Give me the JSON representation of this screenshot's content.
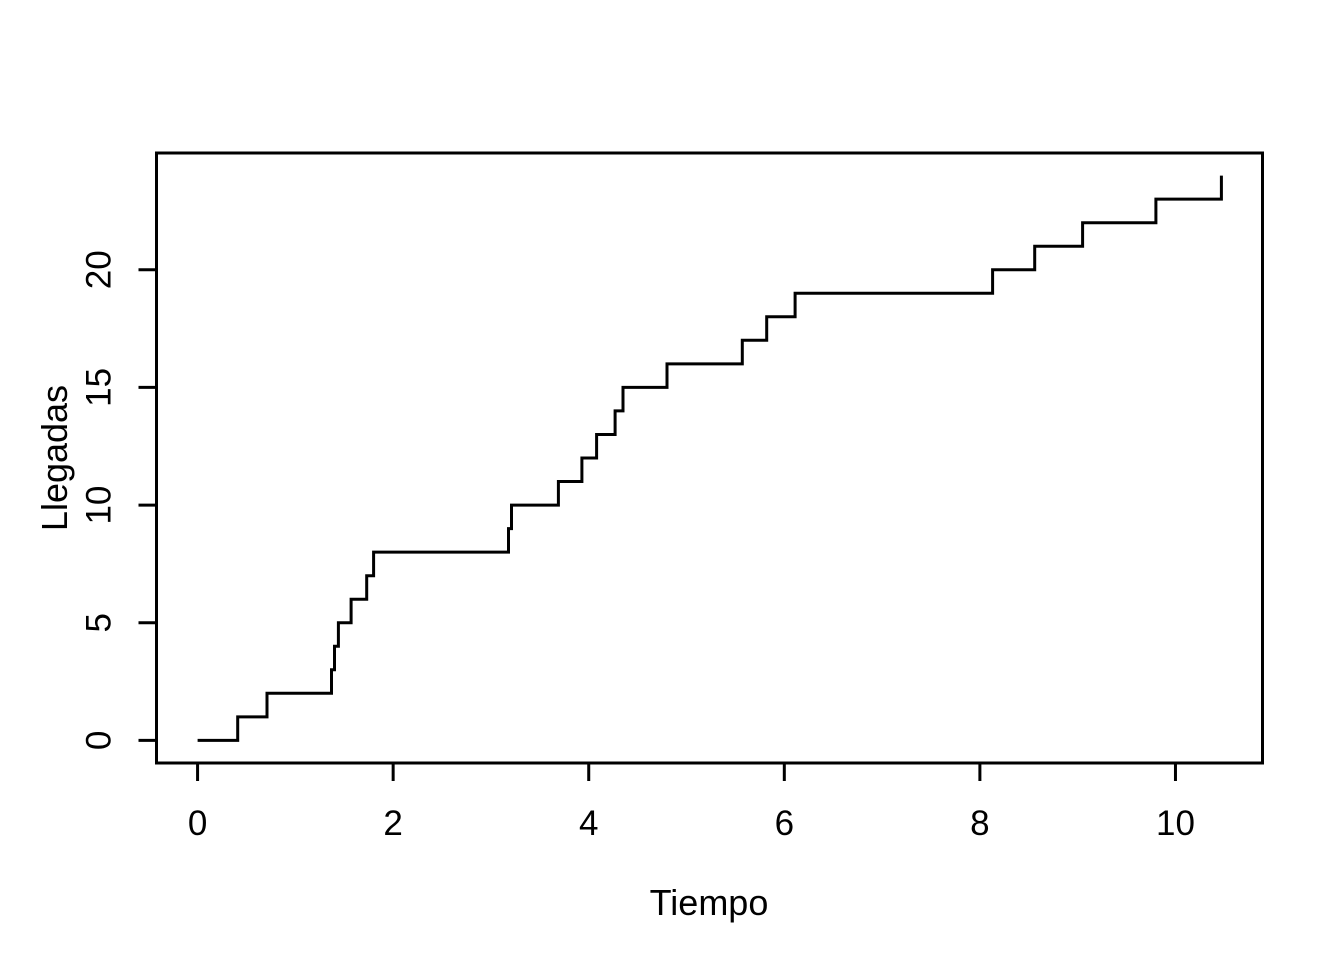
{
  "figure": {
    "background": "#ffffff",
    "foreground": "#000000"
  },
  "chart_data": {
    "type": "line",
    "subtype": "step",
    "title": "",
    "xlabel": "Tiempo",
    "ylabel": "Llegadas",
    "grid": false,
    "legend": null,
    "line_color": "#000000",
    "axis_color": "#000000",
    "background": "#ffffff",
    "start_point": {
      "x": 0,
      "y": 0
    },
    "x": [
      0.41,
      0.71,
      1.37,
      1.4,
      1.44,
      1.57,
      1.73,
      1.8,
      3.18,
      3.21,
      3.69,
      3.93,
      4.08,
      4.27,
      4.35,
      4.8,
      5.57,
      5.82,
      6.11,
      8.13,
      8.56,
      9.05,
      9.8,
      10.47
    ],
    "y": [
      1,
      2,
      3,
      4,
      5,
      6,
      7,
      8,
      9,
      10,
      11,
      12,
      13,
      14,
      15,
      16,
      17,
      18,
      19,
      20,
      21,
      22,
      23,
      24
    ],
    "xticks": [
      0,
      2,
      4,
      6,
      8,
      10
    ],
    "yticks": [
      0,
      5,
      10,
      15,
      20
    ],
    "xtick_labels": [
      "0",
      "2",
      "4",
      "6",
      "8",
      "10"
    ],
    "ytick_labels": [
      "0",
      "5",
      "10",
      "15",
      "20"
    ],
    "xlim": [
      -0.42,
      10.89
    ],
    "ylim": [
      -0.96,
      24.96
    ],
    "y_final": 24,
    "x_final": 10.47
  }
}
